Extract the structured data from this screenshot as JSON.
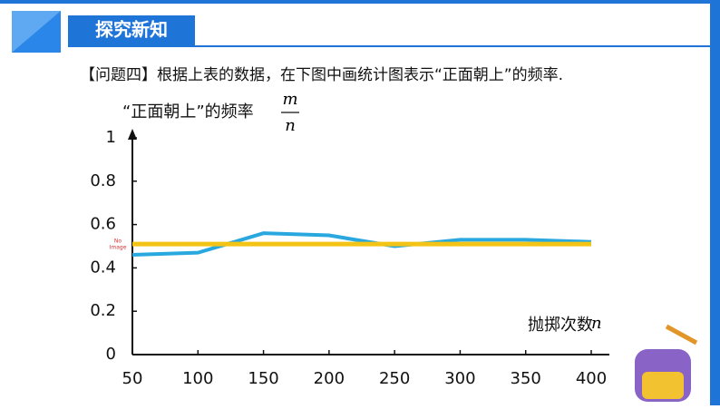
{
  "header": {
    "title": "探究新知"
  },
  "question": "【问题四】根据上表的数据，在下图中画统计图表示“正面朝上”的频率.",
  "placeholder": {
    "line1": "No",
    "line2": "Image"
  },
  "chart_data": {
    "type": "line",
    "y_label": "“正面朝上”的频率",
    "y_label_fraction": {
      "numerator": "m",
      "denominator": "n"
    },
    "x_label": "抛掷次数",
    "x_label_var": "n",
    "x": [
      50,
      100,
      150,
      200,
      250,
      300,
      350,
      400
    ],
    "series": [
      {
        "color": "#29a8e0",
        "values": [
          0.46,
          0.47,
          0.56,
          0.55,
          0.5,
          0.53,
          0.53,
          0.52
        ]
      },
      {
        "color": "#f3c316",
        "values": [
          0.51,
          0.51,
          0.51,
          0.51,
          0.51,
          0.51,
          0.51,
          0.51
        ]
      }
    ],
    "xlim": [
      50,
      400
    ],
    "xticks": [
      50,
      100,
      150,
      200,
      250,
      300,
      350,
      400
    ],
    "ylim": [
      0,
      1
    ],
    "yticks": [
      0,
      0.2,
      0.4,
      0.6,
      0.8,
      1
    ],
    "grid": false
  }
}
